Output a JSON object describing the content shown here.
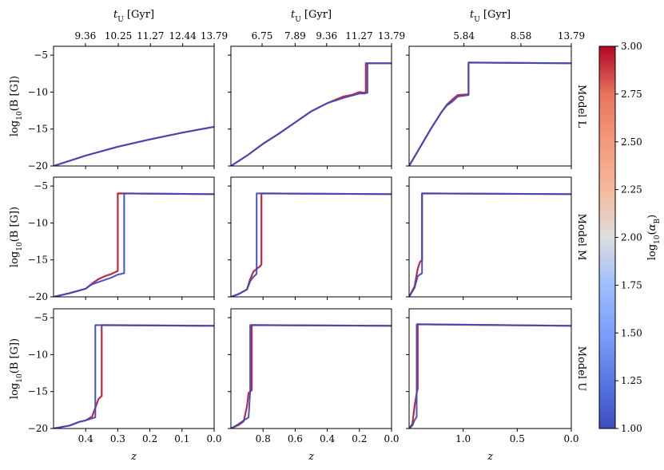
{
  "chart_data": {
    "type": "line",
    "layout": {
      "rows": 3,
      "cols": 3,
      "shared_y": true,
      "shared_x_by_column": true
    },
    "ylim": [
      -20,
      -3.8
    ],
    "yticks": [
      -20,
      -15,
      -10,
      -5
    ],
    "ytick_labels": [
      "−20",
      "−15",
      "−10",
      "−5"
    ],
    "ylabel": "log10(B [G])",
    "xlabel": "z",
    "top_axis_label": "tU [Gyr]",
    "row_labels": [
      "Model L",
      "Model M",
      "Model U"
    ],
    "columns": [
      {
        "xlim": [
          0.5,
          0.0
        ],
        "xticks": [
          0.4,
          0.3,
          0.2,
          0.1,
          0.0
        ],
        "xtick_labels": [
          "0.4",
          "0.3",
          "0.2",
          "0.1",
          "0.0"
        ],
        "top_ticks": [
          0.4007,
          0.2984,
          0.1984,
          0.0978,
          0.0
        ],
        "top_tick_labels": [
          "9.36",
          "10.25",
          "11.27",
          "12.44",
          "13.79"
        ]
      },
      {
        "xlim": [
          1.0,
          0.0
        ],
        "xticks": [
          0.8,
          0.6,
          0.4,
          0.2,
          0.0
        ],
        "xtick_labels": [
          "0.8",
          "0.6",
          "0.4",
          "0.2",
          "0.0"
        ],
        "top_ticks": [
          0.806,
          0.6,
          0.404,
          0.2016,
          0.0
        ],
        "top_tick_labels": [
          "6.75",
          "7.89",
          "9.36",
          "11.27",
          "13.79"
        ]
      },
      {
        "xlim": [
          1.5,
          0.0
        ],
        "xticks": [
          1.0,
          0.5,
          0.0
        ],
        "xtick_labels": [
          "1.0",
          "0.5",
          "0.0"
        ],
        "top_ticks": [
          0.993,
          0.466,
          0.0
        ],
        "top_tick_labels": [
          "5.84",
          "8.58",
          "13.79"
        ]
      }
    ],
    "panels": [
      [
        {
          "red": {
            "x": [
              0.5,
              0.4,
              0.3,
              0.2,
              0.1,
              0.0
            ],
            "y": [
              -20,
              -18.6,
              -17.4,
              -16.4,
              -15.5,
              -14.7
            ]
          },
          "blue": {
            "x": [
              0.5,
              0.4,
              0.3,
              0.2,
              0.1,
              0.0
            ],
            "y": [
              -20,
              -18.6,
              -17.4,
              -16.4,
              -15.5,
              -14.7
            ]
          }
        },
        {
          "red": {
            "x": [
              1.0,
              0.9,
              0.8,
              0.7,
              0.6,
              0.5,
              0.4,
              0.3,
              0.25,
              0.2,
              0.17,
              0.16,
              0.16,
              0.0
            ],
            "y": [
              -20,
              -18.6,
              -17.0,
              -15.6,
              -14.1,
              -12.6,
              -11.5,
              -10.6,
              -10.4,
              -10.0,
              -10.1,
              -10.0,
              -6.1,
              -6.1
            ]
          },
          "blue": {
            "x": [
              1.0,
              0.9,
              0.8,
              0.7,
              0.6,
              0.5,
              0.4,
              0.3,
              0.25,
              0.2,
              0.17,
              0.15,
              0.15,
              0.0
            ],
            "y": [
              -20,
              -18.6,
              -17.0,
              -15.6,
              -14.1,
              -12.6,
              -11.5,
              -10.8,
              -10.5,
              -10.2,
              -10.2,
              -10.1,
              -6.1,
              -6.1
            ]
          }
        },
        {
          "red": {
            "x": [
              1.5,
              1.4,
              1.3,
              1.2,
              1.15,
              1.1,
              1.05,
              0.95,
              0.95,
              0.0
            ],
            "y": [
              -20,
              -17.5,
              -15.0,
              -12.7,
              -11.7,
              -11.0,
              -10.4,
              -10.3,
              -6.0,
              -6.1
            ]
          },
          "blue": {
            "x": [
              1.5,
              1.4,
              1.3,
              1.2,
              1.15,
              1.1,
              1.05,
              0.95,
              0.95,
              0.0
            ],
            "y": [
              -20,
              -17.5,
              -15.0,
              -12.7,
              -11.8,
              -11.3,
              -10.6,
              -10.4,
              -6.0,
              -6.1
            ]
          }
        }
      ],
      [
        {
          "red": {
            "x": [
              0.5,
              0.45,
              0.4,
              0.38,
              0.36,
              0.34,
              0.32,
              0.3,
              0.3,
              0.0
            ],
            "y": [
              -20,
              -19.5,
              -18.9,
              -18.2,
              -17.6,
              -17.2,
              -16.9,
              -16.5,
              -6.0,
              -6.1
            ]
          },
          "blue": {
            "x": [
              0.5,
              0.45,
              0.4,
              0.38,
              0.36,
              0.32,
              0.3,
              0.28,
              0.28,
              0.0
            ],
            "y": [
              -20,
              -19.5,
              -18.9,
              -18.3,
              -18.0,
              -17.4,
              -17.0,
              -16.8,
              -6.0,
              -6.1
            ]
          }
        },
        {
          "red": {
            "x": [
              1.0,
              0.95,
              0.9,
              0.88,
              0.86,
              0.84,
              0.82,
              0.81,
              0.81,
              0.0
            ],
            "y": [
              -20,
              -19.6,
              -19.0,
              -17.6,
              -16.6,
              -16.2,
              -15.9,
              -15.6,
              -6.0,
              -6.1
            ]
          },
          "blue": {
            "x": [
              1.0,
              0.95,
              0.9,
              0.88,
              0.86,
              0.84,
              0.84,
              0.0
            ],
            "y": [
              -20,
              -19.6,
              -19.0,
              -17.9,
              -17.3,
              -16.9,
              -6.0,
              -6.1
            ]
          }
        },
        {
          "red": {
            "x": [
              1.5,
              1.45,
              1.42,
              1.4,
              1.38,
              1.38,
              0.0
            ],
            "y": [
              -20,
              -18.6,
              -16.2,
              -15.3,
              -15.0,
              -6.0,
              -6.1
            ]
          },
          "blue": {
            "x": [
              1.5,
              1.45,
              1.42,
              1.4,
              1.38,
              1.38,
              0.0
            ],
            "y": [
              -20,
              -18.8,
              -17.2,
              -17.0,
              -16.8,
              -6.0,
              -6.1
            ]
          }
        }
      ],
      [
        {
          "red": {
            "x": [
              0.5,
              0.45,
              0.42,
              0.4,
              0.38,
              0.36,
              0.35,
              0.35,
              0.0
            ],
            "y": [
              -20,
              -19.6,
              -19.1,
              -18.9,
              -18.4,
              -16.0,
              -15.6,
              -6.0,
              -6.1
            ]
          },
          "blue": {
            "x": [
              0.5,
              0.45,
              0.42,
              0.4,
              0.37,
              0.37,
              0.0
            ],
            "y": [
              -20,
              -19.6,
              -19.1,
              -18.9,
              -18.5,
              -6.0,
              -6.1
            ]
          }
        },
        {
          "red": {
            "x": [
              1.0,
              0.95,
              0.92,
              0.9,
              0.89,
              0.87,
              0.87,
              0.0
            ],
            "y": [
              -20,
              -19.5,
              -19.0,
              -17.0,
              -15.2,
              -14.8,
              -6.0,
              -6.1
            ]
          },
          "blue": {
            "x": [
              1.0,
              0.96,
              0.92,
              0.89,
              0.88,
              0.88,
              0.0
            ],
            "y": [
              -20,
              -19.5,
              -18.9,
              -18.5,
              -15.0,
              -6.0,
              -6.1
            ]
          }
        },
        {
          "red": {
            "x": [
              1.5,
              1.47,
              1.45,
              1.43,
              1.42,
              1.42,
              0.0
            ],
            "y": [
              -20,
              -19.4,
              -17.0,
              -15.2,
              -14.6,
              -5.9,
              -6.1
            ]
          },
          "blue": {
            "x": [
              1.5,
              1.47,
              1.45,
              1.43,
              1.43,
              0.0
            ],
            "y": [
              -20,
              -19.6,
              -18.9,
              -18.4,
              -5.9,
              -6.1
            ]
          }
        }
      ]
    ],
    "colorbar": {
      "label": "log10(αB)",
      "range": [
        1.0,
        3.0
      ],
      "ticks": [
        "1.00",
        "1.25",
        "1.50",
        "1.75",
        "2.00",
        "2.25",
        "2.50",
        "2.75",
        "3.00"
      ],
      "colormap": "coolwarm"
    },
    "colors": {
      "low": "#3b4cc0",
      "mid": "#dddddd",
      "high": "#b40426"
    }
  }
}
